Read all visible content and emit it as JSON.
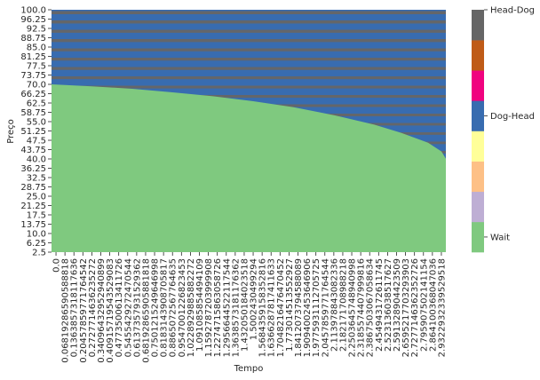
{
  "chart_data": {
    "type": "heatmap",
    "title": "",
    "xlabel": "Tempo",
    "ylabel": "Preço",
    "y_tick_labels": [
      "100.0",
      "96.25",
      "92.5",
      "88.75",
      "85.0",
      "81.25",
      "77.5",
      "73.75",
      "70.0",
      "66.25",
      "62.5",
      "58.75",
      "55.0",
      "51.25",
      "47.5",
      "43.75",
      "40.0",
      "36.25",
      "32.5",
      "28.75",
      "25.0",
      "21.25",
      "17.5",
      "13.75",
      "10.0",
      "6.25",
      "2.5"
    ],
    "x_tick_labels": [
      "0.0",
      "0.06819286590588818",
      "0.1363857318117636",
      "0.20457859771764542",
      "0.2727714636235272",
      "0.34096432952940899",
      "0.40915719543529083",
      "0.4773500613411726",
      "0.5455429272470544",
      "0.6137357931529362",
      "0.68192865905881818",
      "0.7501215249646998",
      "0.8183143908705817",
      "0.8865072567764635",
      "0.9547001226823453",
      "1.0228929885882272",
      "1.091085854494109",
      "1.1592787203999908",
      "1.2274715863058726",
      "1.2956644522117544",
      "1.3638573181176362",
      "1.432050184023518",
      "1.5002430499294",
      "1.5684359158352816",
      "1.6366287817411633",
      "1.7048216476470452",
      "1.773014513552927",
      "1.8412073794588089",
      "1.9094002453646906",
      "1.9775931112705725",
      "2.0457859771764544",
      "2.113978843082336",
      "2.182171708988218",
      "2.2503645748940998",
      "2.3185574407999816",
      "2.3867503067058634",
      "2.454943172611745",
      "2.523136038517627",
      "2.591328904423509",
      "2.6595217703293903",
      "2.7277146362352726",
      "2.795907502141154",
      "2.864100368047036",
      "2.9322932339529518"
    ],
    "categories": [
      "Wait",
      "Dog-Head",
      "Head-Dog"
    ],
    "colorbar_labels": [
      "Wait",
      "Dog-Head",
      "Head-Dog"
    ],
    "palette": [
      "#7fc97f",
      "#beaed4",
      "#fdc086",
      "#ffff99",
      "#386cb0",
      "#f0027f",
      "#bf5b17",
      "#666666"
    ],
    "legend_placement": "right",
    "boundary_description": "Wait region below curve; Dog-Head / Head-Dog striped region above",
    "boundary_price": [
      [
        0.0,
        70.0
      ],
      [
        0.3,
        69.2
      ],
      [
        0.6,
        68.2
      ],
      [
        0.9,
        66.8
      ],
      [
        1.2,
        65.2
      ],
      [
        1.5,
        63.2
      ],
      [
        1.8,
        60.8
      ],
      [
        2.1,
        57.6
      ],
      [
        2.4,
        53.8
      ],
      [
        2.6,
        50.5
      ],
      [
        2.8,
        46.5
      ],
      [
        2.9,
        43.0
      ],
      [
        2.95,
        38.5
      ]
    ],
    "xlim": [
      0.0,
      2.9322932339529517
    ],
    "ylim": [
      2.5,
      100.0
    ]
  }
}
